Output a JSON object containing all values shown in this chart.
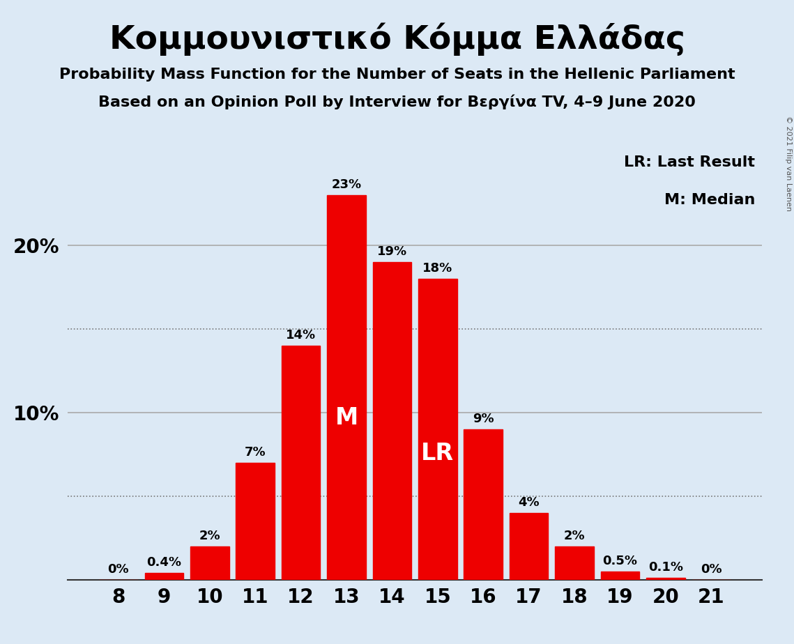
{
  "title": "Κομμουνιστικό Κόμμα Ελλάδας",
  "subtitle1": "Probability Mass Function for the Number of Seats in the Hellenic Parliament",
  "subtitle2": "Based on an Opinion Poll by Interview for Βεργίνα TV, 4–9 June 2020",
  "copyright": "© 2021 Filip van Laenen",
  "categories": [
    8,
    9,
    10,
    11,
    12,
    13,
    14,
    15,
    16,
    17,
    18,
    19,
    20,
    21
  ],
  "values": [
    0.0,
    0.4,
    2.0,
    7.0,
    14.0,
    23.0,
    19.0,
    18.0,
    9.0,
    4.0,
    2.0,
    0.5,
    0.1,
    0.0
  ],
  "bar_color": "#ee0000",
  "background_color": "#dce9f5",
  "median_bar": 13,
  "lr_bar": 15,
  "legend_lr": "LR: Last Result",
  "legend_m": "M: Median",
  "dotted_lines": [
    5,
    15
  ],
  "ylim": [
    0,
    26
  ],
  "bar_labels": [
    "0%",
    "0.4%",
    "2%",
    "7%",
    "14%",
    "23%",
    "19%",
    "18%",
    "9%",
    "4%",
    "2%",
    "0.5%",
    "0.1%",
    "0%"
  ]
}
